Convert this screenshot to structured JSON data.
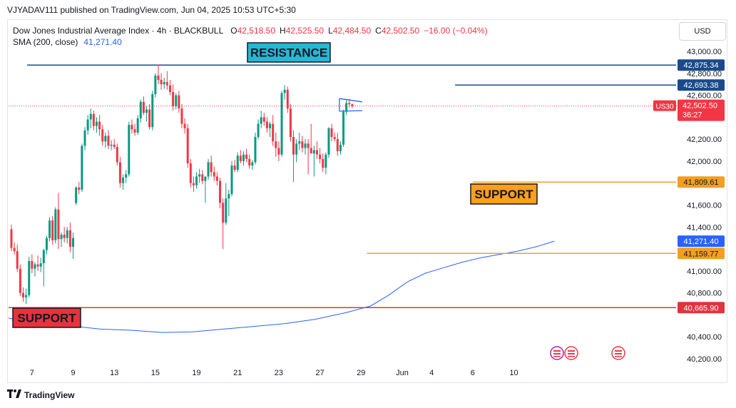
{
  "header": {
    "published_line": "VJYADAV111 published on TradingView.com, Jun 04, 2025 10:53 UTC+5:30"
  },
  "legend": {
    "symbol": "Dow Jones Industrial Average Index · 4h · BLACKBULL",
    "o_label": "O",
    "o_value": "42,518.50",
    "h_label": "H",
    "h_value": "42,525.50",
    "l_label": "L",
    "l_value": "42,484.50",
    "c_label": "C",
    "c_value": "42,502.50",
    "change": "−16.00 (−0.04%)",
    "sma_label": "SMA (200, close)",
    "sma_value": "41,271.40"
  },
  "currency_button": "USD",
  "footer": {
    "logo_text": "TradingView"
  },
  "colors": {
    "up": "#089981",
    "down": "#f23645",
    "sma": "#2962ff",
    "resistance_line": "#1a4a8c",
    "support_line": "#f0a020",
    "support_bottom": "#e0343e",
    "label_blue_bg": "#29b6d4",
    "label_orange_bg": "#ff9f1a",
    "label_red_bg": "#e8323c"
  },
  "chart_data": {
    "type": "candlestick",
    "timeframe": "4h",
    "y_range": [
      40100,
      43150
    ],
    "y_ticks": [
      "43,000.00",
      "42,800.00",
      "42,600.00",
      "42,200.00",
      "42,000.00",
      "41,600.00",
      "41,400.00",
      "41,000.00",
      "40,800.00",
      "40,400.00",
      "40,200.00"
    ],
    "y_tick_values": [
      43000,
      42800,
      42600,
      42200,
      42000,
      41600,
      41400,
      41000,
      40800,
      40400,
      40200
    ],
    "x_ticks": [
      "7",
      "9",
      "13",
      "15",
      "19",
      "21",
      "23",
      "27",
      "29",
      "Jun",
      "4",
      "6",
      "10"
    ],
    "x_tick_slots": [
      7,
      21,
      35,
      49,
      63,
      77,
      91,
      105,
      119,
      133,
      143,
      157,
      171
    ],
    "candles": [
      {
        "o": 41380,
        "h": 41420,
        "l": 41180,
        "c": 41210
      },
      {
        "o": 41210,
        "h": 41260,
        "l": 41150,
        "c": 41180
      },
      {
        "o": 41180,
        "h": 41240,
        "l": 40990,
        "c": 41020
      },
      {
        "o": 41020,
        "h": 41060,
        "l": 40770,
        "c": 40800
      },
      {
        "o": 40800,
        "h": 40850,
        "l": 40720,
        "c": 40760
      },
      {
        "o": 40760,
        "h": 40840,
        "l": 40700,
        "c": 40780
      },
      {
        "o": 40780,
        "h": 41130,
        "l": 40760,
        "c": 41090
      },
      {
        "o": 41090,
        "h": 41150,
        "l": 40980,
        "c": 41020
      },
      {
        "o": 41020,
        "h": 41080,
        "l": 40950,
        "c": 41060
      },
      {
        "o": 41060,
        "h": 41140,
        "l": 41000,
        "c": 41040
      },
      {
        "o": 41040,
        "h": 41120,
        "l": 40990,
        "c": 41070
      },
      {
        "o": 41070,
        "h": 41200,
        "l": 40860,
        "c": 41190
      },
      {
        "o": 41190,
        "h": 41320,
        "l": 41150,
        "c": 41300
      },
      {
        "o": 41300,
        "h": 41490,
        "l": 41270,
        "c": 41460
      },
      {
        "o": 41460,
        "h": 41500,
        "l": 41240,
        "c": 41280
      },
      {
        "o": 41280,
        "h": 41580,
        "l": 41250,
        "c": 41560
      },
      {
        "o": 41560,
        "h": 41710,
        "l": 41200,
        "c": 41290
      },
      {
        "o": 41290,
        "h": 41350,
        "l": 41220,
        "c": 41330
      },
      {
        "o": 41330,
        "h": 41400,
        "l": 41260,
        "c": 41300
      },
      {
        "o": 41300,
        "h": 41400,
        "l": 41250,
        "c": 41370
      },
      {
        "o": 41370,
        "h": 41440,
        "l": 41170,
        "c": 41220
      },
      {
        "o": 41220,
        "h": 41350,
        "l": 41110,
        "c": 41300
      },
      {
        "o": 41620,
        "h": 41770,
        "l": 41600,
        "c": 41760
      },
      {
        "o": 41760,
        "h": 41810,
        "l": 41700,
        "c": 41740
      },
      {
        "o": 41740,
        "h": 42160,
        "l": 41720,
        "c": 42140
      },
      {
        "o": 42140,
        "h": 42310,
        "l": 42100,
        "c": 42280
      },
      {
        "o": 42280,
        "h": 42420,
        "l": 42240,
        "c": 42380
      },
      {
        "o": 42380,
        "h": 42480,
        "l": 42300,
        "c": 42430
      },
      {
        "o": 42430,
        "h": 42460,
        "l": 42280,
        "c": 42320
      },
      {
        "o": 42320,
        "h": 42400,
        "l": 42260,
        "c": 42360
      },
      {
        "o": 42360,
        "h": 42420,
        "l": 42230,
        "c": 42290
      },
      {
        "o": 42290,
        "h": 42330,
        "l": 42140,
        "c": 42180
      },
      {
        "o": 42180,
        "h": 42260,
        "l": 42120,
        "c": 42230
      },
      {
        "o": 42230,
        "h": 42280,
        "l": 42110,
        "c": 42140
      },
      {
        "o": 42140,
        "h": 42190,
        "l": 42100,
        "c": 42150
      },
      {
        "o": 42150,
        "h": 42200,
        "l": 42110,
        "c": 42130
      },
      {
        "o": 42130,
        "h": 42160,
        "l": 41960,
        "c": 41990
      },
      {
        "o": 41990,
        "h": 42040,
        "l": 41760,
        "c": 41800
      },
      {
        "o": 41800,
        "h": 41880,
        "l": 41740,
        "c": 41850
      },
      {
        "o": 41850,
        "h": 41920,
        "l": 41800,
        "c": 41880
      },
      {
        "o": 41880,
        "h": 42360,
        "l": 41860,
        "c": 42330
      },
      {
        "o": 42330,
        "h": 42380,
        "l": 42250,
        "c": 42290
      },
      {
        "o": 42290,
        "h": 42340,
        "l": 42230,
        "c": 42260
      },
      {
        "o": 42260,
        "h": 42420,
        "l": 42240,
        "c": 42390
      },
      {
        "o": 42390,
        "h": 42560,
        "l": 42350,
        "c": 42540
      },
      {
        "o": 42540,
        "h": 42590,
        "l": 42420,
        "c": 42440
      },
      {
        "o": 42440,
        "h": 42500,
        "l": 42360,
        "c": 42470
      },
      {
        "o": 42470,
        "h": 42520,
        "l": 42290,
        "c": 42310
      },
      {
        "o": 42310,
        "h": 42640,
        "l": 42280,
        "c": 42610
      },
      {
        "o": 42610,
        "h": 42800,
        "l": 42580,
        "c": 42780
      },
      {
        "o": 42780,
        "h": 42880,
        "l": 42700,
        "c": 42740
      },
      {
        "o": 42740,
        "h": 42800,
        "l": 42650,
        "c": 42700
      },
      {
        "o": 42700,
        "h": 42760,
        "l": 42660,
        "c": 42720
      },
      {
        "o": 42720,
        "h": 42820,
        "l": 42650,
        "c": 42690
      },
      {
        "o": 42690,
        "h": 42740,
        "l": 42600,
        "c": 42630
      },
      {
        "o": 42630,
        "h": 42700,
        "l": 42460,
        "c": 42500
      },
      {
        "o": 42500,
        "h": 42620,
        "l": 42470,
        "c": 42600
      },
      {
        "o": 42600,
        "h": 42640,
        "l": 42440,
        "c": 42480
      },
      {
        "o": 42480,
        "h": 42520,
        "l": 42300,
        "c": 42340
      },
      {
        "o": 42340,
        "h": 42390,
        "l": 42250,
        "c": 42300
      },
      {
        "o": 42300,
        "h": 42340,
        "l": 41940,
        "c": 41980
      },
      {
        "o": 41980,
        "h": 42020,
        "l": 41760,
        "c": 41800
      },
      {
        "o": 41800,
        "h": 41860,
        "l": 41720,
        "c": 41780
      },
      {
        "o": 41780,
        "h": 41900,
        "l": 41750,
        "c": 41860
      },
      {
        "o": 41860,
        "h": 41930,
        "l": 41800,
        "c": 41880
      },
      {
        "o": 41880,
        "h": 41920,
        "l": 41790,
        "c": 41820
      },
      {
        "o": 41820,
        "h": 41860,
        "l": 41620,
        "c": 41860
      },
      {
        "o": 41860,
        "h": 42020,
        "l": 41830,
        "c": 41990
      },
      {
        "o": 41990,
        "h": 42050,
        "l": 41860,
        "c": 41900
      },
      {
        "o": 41900,
        "h": 41950,
        "l": 41820,
        "c": 41860
      },
      {
        "o": 41860,
        "h": 41900,
        "l": 41780,
        "c": 41820
      },
      {
        "o": 41820,
        "h": 41850,
        "l": 41570,
        "c": 41620
      },
      {
        "o": 41620,
        "h": 41660,
        "l": 41200,
        "c": 41440
      },
      {
        "o": 41440,
        "h": 41800,
        "l": 41420,
        "c": 41660
      },
      {
        "o": 41660,
        "h": 41740,
        "l": 41500,
        "c": 41700
      },
      {
        "o": 41700,
        "h": 42000,
        "l": 41680,
        "c": 41960
      },
      {
        "o": 41960,
        "h": 42010,
        "l": 41900,
        "c": 41920
      },
      {
        "o": 41920,
        "h": 42080,
        "l": 41900,
        "c": 42050
      },
      {
        "o": 42050,
        "h": 42100,
        "l": 41980,
        "c": 42000
      },
      {
        "o": 42000,
        "h": 42090,
        "l": 41960,
        "c": 42060
      },
      {
        "o": 42060,
        "h": 42110,
        "l": 41990,
        "c": 42020
      },
      {
        "o": 42020,
        "h": 42060,
        "l": 41930,
        "c": 41960
      },
      {
        "o": 41960,
        "h": 42010,
        "l": 41920,
        "c": 41990
      },
      {
        "o": 41990,
        "h": 42260,
        "l": 41970,
        "c": 42220
      },
      {
        "o": 42220,
        "h": 42380,
        "l": 42200,
        "c": 42340
      },
      {
        "o": 42340,
        "h": 42460,
        "l": 42300,
        "c": 42400
      },
      {
        "o": 42400,
        "h": 42440,
        "l": 42320,
        "c": 42360
      },
      {
        "o": 42360,
        "h": 42400,
        "l": 42260,
        "c": 42300
      },
      {
        "o": 42300,
        "h": 42360,
        "l": 42220,
        "c": 42340
      },
      {
        "o": 42340,
        "h": 42420,
        "l": 42140,
        "c": 42180
      },
      {
        "o": 42180,
        "h": 42260,
        "l": 42040,
        "c": 42120
      },
      {
        "o": 42120,
        "h": 42180,
        "l": 42000,
        "c": 42060
      },
      {
        "o": 42060,
        "h": 42640,
        "l": 42040,
        "c": 42620
      },
      {
        "o": 42620,
        "h": 42693,
        "l": 42560,
        "c": 42650
      },
      {
        "o": 42650,
        "h": 42680,
        "l": 42440,
        "c": 42480
      },
      {
        "o": 42480,
        "h": 42520,
        "l": 42180,
        "c": 42220
      },
      {
        "o": 42220,
        "h": 42280,
        "l": 41810,
        "c": 42060
      },
      {
        "o": 42060,
        "h": 42200,
        "l": 41990,
        "c": 42160
      },
      {
        "o": 42160,
        "h": 42260,
        "l": 42100,
        "c": 42180
      },
      {
        "o": 42180,
        "h": 42230,
        "l": 42080,
        "c": 42120
      },
      {
        "o": 42120,
        "h": 42200,
        "l": 42060,
        "c": 42160
      },
      {
        "o": 42160,
        "h": 42200,
        "l": 41880,
        "c": 42120
      },
      {
        "o": 42120,
        "h": 42340,
        "l": 42090,
        "c": 42070
      },
      {
        "o": 42070,
        "h": 42140,
        "l": 41860,
        "c": 42100
      },
      {
        "o": 42100,
        "h": 42180,
        "l": 42020,
        "c": 42060
      },
      {
        "o": 42060,
        "h": 42120,
        "l": 41980,
        "c": 42020
      },
      {
        "o": 42020,
        "h": 42070,
        "l": 41900,
        "c": 41940
      },
      {
        "o": 41940,
        "h": 42080,
        "l": 41880,
        "c": 42060
      },
      {
        "o": 42060,
        "h": 42310,
        "l": 42030,
        "c": 42300
      },
      {
        "o": 42300,
        "h": 42340,
        "l": 42180,
        "c": 42220
      },
      {
        "o": 42220,
        "h": 42260,
        "l": 42180,
        "c": 42200
      },
      {
        "o": 42200,
        "h": 42260,
        "l": 42050,
        "c": 42090
      },
      {
        "o": 42090,
        "h": 42180,
        "l": 42060,
        "c": 42150
      },
      {
        "o": 42150,
        "h": 42470,
        "l": 42130,
        "c": 42450
      },
      {
        "o": 42450,
        "h": 42560,
        "l": 42420,
        "c": 42530
      },
      {
        "o": 42530,
        "h": 42570,
        "l": 42490,
        "c": 42518
      },
      {
        "o": 42518,
        "h": 42525.5,
        "l": 42484.5,
        "c": 42502.5
      }
    ],
    "sma_200": [
      [
        0,
        40570
      ],
      [
        10,
        40520
      ],
      [
        20,
        40500
      ],
      [
        30,
        40470
      ],
      [
        40,
        40460
      ],
      [
        50,
        40440
      ],
      [
        60,
        40445
      ],
      [
        70,
        40470
      ],
      [
        80,
        40495
      ],
      [
        90,
        40520
      ],
      [
        100,
        40560
      ],
      [
        110,
        40620
      ],
      [
        118,
        40680
      ],
      [
        124,
        40780
      ],
      [
        130,
        40900
      ],
      [
        136,
        40980
      ],
      [
        142,
        41030
      ],
      [
        148,
        41080
      ],
      [
        154,
        41120
      ],
      [
        160,
        41150
      ],
      [
        166,
        41180
      ],
      [
        172,
        41220
      ],
      [
        178,
        41271
      ]
    ],
    "horizontal_levels": [
      {
        "value": 42875.34,
        "label": "42,875.34",
        "kind": "resistance"
      },
      {
        "value": 42693.38,
        "label": "42,693.38",
        "kind": "resistance"
      },
      {
        "value": 41809.61,
        "label": "41,809.61",
        "kind": "support"
      },
      {
        "value": 41159.77,
        "label": "41,159.77",
        "kind": "support"
      },
      {
        "value": 40665.9,
        "label": "40,665.90",
        "kind": "support-major"
      }
    ],
    "price_tags": [
      {
        "label": "US30",
        "value": 42502.5
      },
      {
        "label": "42,502.50",
        "value": 42502.5
      },
      {
        "label": "36:27",
        "value": 42502.5
      },
      {
        "label": "41,271.40",
        "value": 41271.4
      }
    ],
    "annotations": [
      {
        "text": "RESISTANCE"
      },
      {
        "text": "SUPPORT"
      },
      {
        "text": "SUPPORT"
      }
    ]
  }
}
